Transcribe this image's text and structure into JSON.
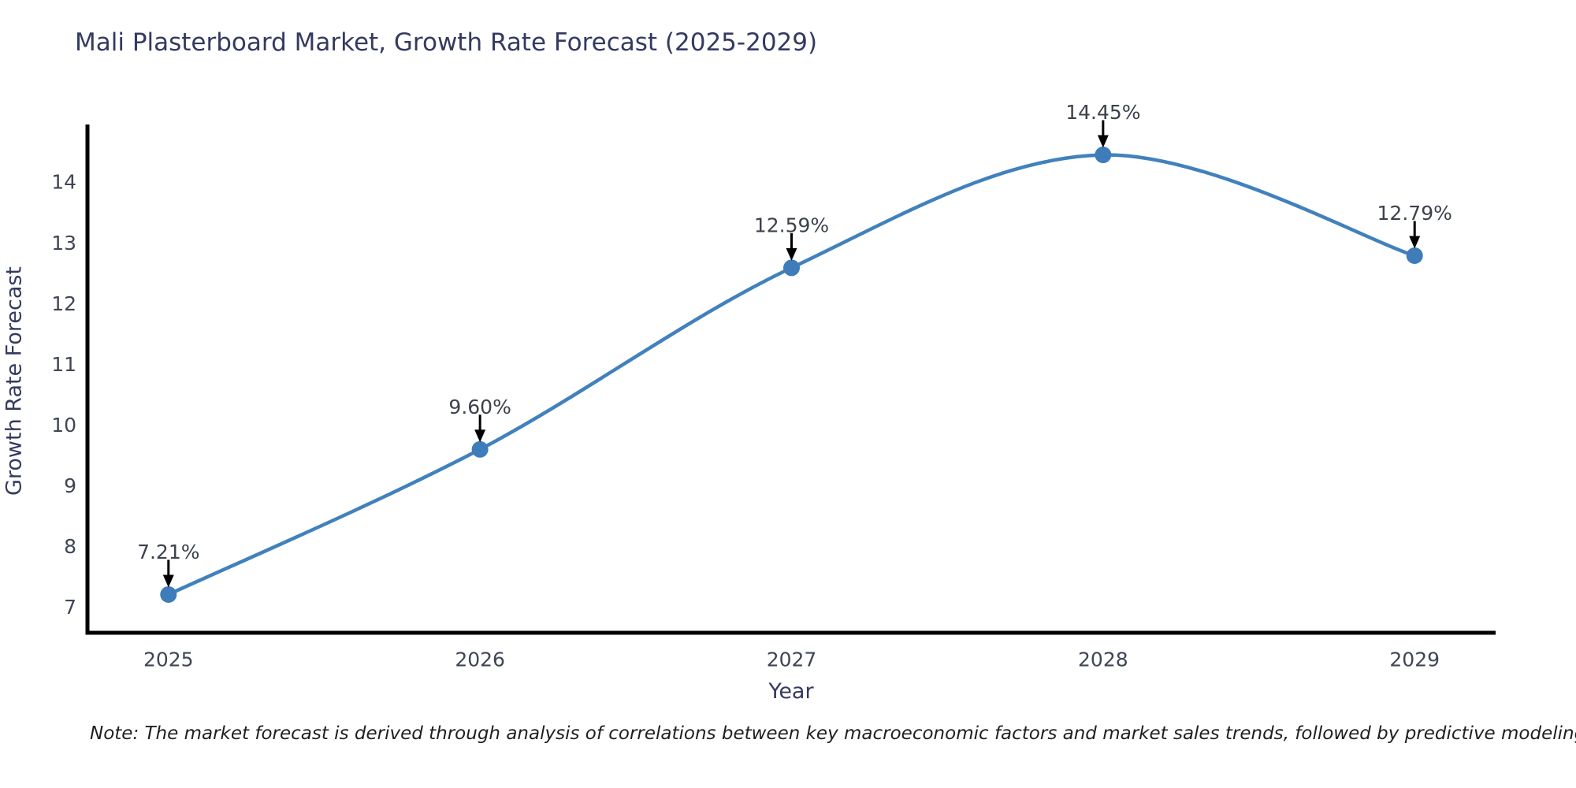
{
  "note": "Note: The market forecast is derived through analysis of correlations between key macroeconomic factors and market sales trends, followed by predictive modeling to project future sales",
  "chart_data": {
    "type": "line",
    "title": "Mali Plasterboard Market, Growth Rate Forecast (2025-2029)",
    "xlabel": "Year",
    "ylabel": "Growth Rate Forecast",
    "x": [
      2025,
      2026,
      2027,
      2028,
      2029
    ],
    "values": [
      7.21,
      9.6,
      12.59,
      14.45,
      12.79
    ],
    "point_labels": [
      "7.21%",
      "9.60%",
      "12.59%",
      "14.45%",
      "12.79%"
    ],
    "xtick_labels": [
      "2025",
      "2026",
      "2027",
      "2028",
      "2029"
    ],
    "yticks": [
      7,
      8,
      9,
      10,
      11,
      12,
      13,
      14
    ],
    "xlim": [
      2024.74,
      2029.26
    ],
    "ylim": [
      6.58,
      14.95
    ],
    "grid": false,
    "legend_position": "none",
    "smooth": true,
    "line_color": "#4181bc",
    "marker_color": "#3e7cba",
    "arrow_color": "#000000",
    "spine_color": "#000000",
    "tick_color": "#3f4554",
    "annotation_color": "#3c414d"
  }
}
